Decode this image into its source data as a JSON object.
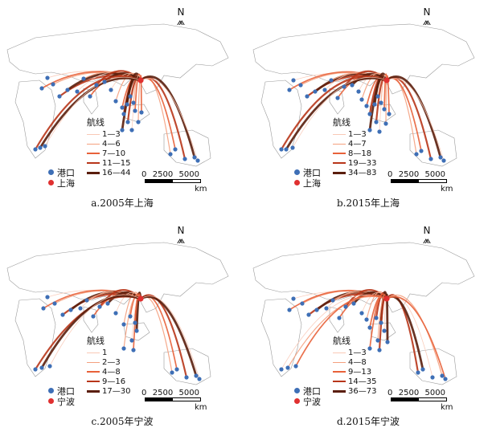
{
  "north_label": "N",
  "port_legend": {
    "port": "港口"
  },
  "scale": {
    "ticks": [
      "0",
      "2500",
      "5000"
    ],
    "unit": "km"
  },
  "colors": {
    "port": "#3e6fb6",
    "hub": "#e03030",
    "route_light": "#f6b8a2",
    "route_dark": "#5a1e0c"
  },
  "panels": [
    {
      "caption": "a.2005年上海",
      "hub_label": "上海",
      "legend_title": "航线",
      "classes": [
        "1—3",
        "4—6",
        "7—10",
        "11—15",
        "16—44"
      ]
    },
    {
      "caption": "b.2015年上海",
      "hub_label": "上海",
      "legend_title": "航线",
      "classes": [
        "1—3",
        "4—7",
        "8—18",
        "19—33",
        "34—83"
      ]
    },
    {
      "caption": "c.2005年宁波",
      "hub_label": "宁波",
      "legend_title": "航线",
      "classes": [
        "1",
        "2—3",
        "4—8",
        "9—16",
        "17—30"
      ]
    },
    {
      "caption": "d.2015年宁波",
      "hub_label": "宁波",
      "legend_title": "航线",
      "classes": [
        "1—3",
        "4—8",
        "9—13",
        "14—35",
        "36—73"
      ]
    }
  ]
}
